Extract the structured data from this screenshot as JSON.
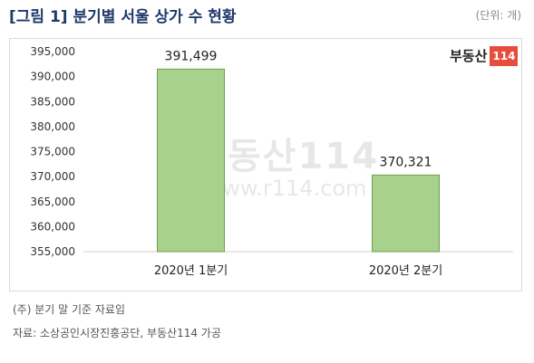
{
  "header": {
    "title": "[그림 1] 분기별 서울 상가 수 현황",
    "unit": "(단위: 개)"
  },
  "logo": {
    "text": "부동산",
    "number": "114"
  },
  "watermark": {
    "logo_text": "부동산",
    "logo_number": "114",
    "url": "www.r114.com"
  },
  "chart_data": {
    "type": "bar",
    "categories": [
      "2020년 1분기",
      "2020년 2분기"
    ],
    "values": [
      391499,
      370321
    ],
    "value_labels": [
      "391,499",
      "370,321"
    ],
    "ylim": [
      355000,
      395000
    ],
    "yticks": [
      355000,
      360000,
      365000,
      370000,
      375000,
      380000,
      385000,
      390000,
      395000
    ],
    "ytick_labels": [
      "355,000",
      "360,000",
      "365,000",
      "370,000",
      "375,000",
      "380,000",
      "385,000",
      "390,000",
      "395,000"
    ],
    "grid": false,
    "colors": {
      "bar_fill": "#a9d18e",
      "bar_stroke": "#6e9f4f"
    }
  },
  "notes": {
    "note1": "(주) 분기 말 기준 자료임",
    "note2": "자료: 소상공인시장진흥공단, 부동산114 가공"
  }
}
